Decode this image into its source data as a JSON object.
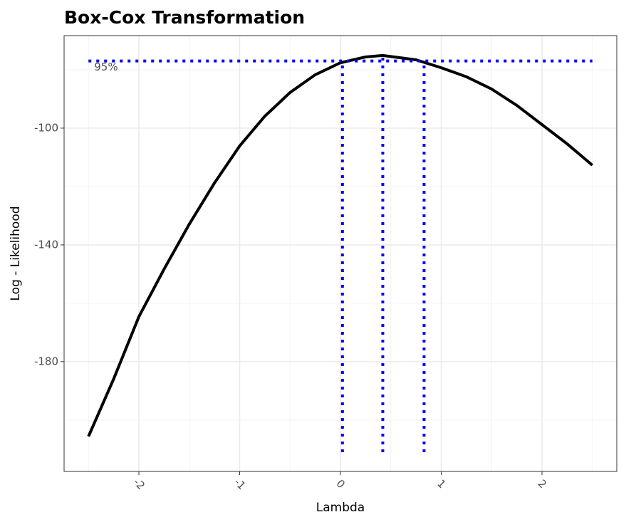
{
  "chart_data": {
    "type": "line",
    "title": "Box-Cox Transformation",
    "x_label": "Lambda",
    "y_label": "Log - Likelihood",
    "x": [
      -2.5,
      -2.25,
      -2,
      -1.75,
      -1.5,
      -1.25,
      -1,
      -0.75,
      -0.5,
      -0.25,
      0,
      0.25,
      0.42,
      0.75,
      1,
      1.25,
      1.5,
      1.75,
      2,
      2.25,
      2.5
    ],
    "series": [
      {
        "color": "#000000",
        "values": [
          -205.6,
          -185.9,
          -164.6,
          -148.3,
          -132.9,
          -118.8,
          -106.1,
          -95.9,
          -87.8,
          -81.7,
          -77.6,
          -75.6,
          -75.1,
          -76.6,
          -79.3,
          -82.4,
          -86.6,
          -92.2,
          -98.8,
          -105.4,
          -112.7
        ]
      }
    ],
    "xlim": [
      -2.742,
      2.742
    ],
    "ylim": [
      -217.6,
      -68.3
    ],
    "xticks": [
      -2,
      -1,
      0,
      1,
      2
    ],
    "yticks": [
      -100,
      -140,
      -180
    ],
    "x_minor_grid": [
      -2.5,
      -1.5,
      -0.5,
      0.5,
      1.5,
      2.5
    ],
    "y_minor_grid": [
      -200,
      -160,
      -120,
      -80
    ],
    "grid": true,
    "confidence": {
      "color": "#0000ff",
      "label": "95%",
      "threshold": -77.0,
      "threshold_from": -2.5,
      "threshold_to": 2.5,
      "lambdas": [
        0.02,
        0.42,
        0.83
      ],
      "lambda_tops": [
        -77.0,
        -75.1,
        -77.0
      ],
      "bottom": -211.0
    }
  }
}
